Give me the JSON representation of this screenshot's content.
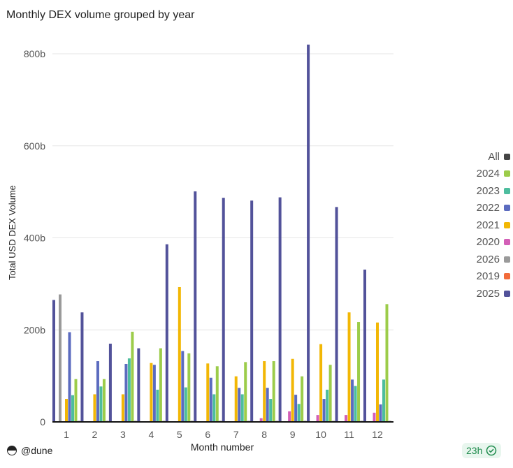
{
  "chart_data": {
    "type": "bar",
    "title": "Monthly DEX volume grouped by year",
    "xlabel": "Month number",
    "ylabel": "Total USD DEX Volume",
    "ylim": [
      0,
      800
    ],
    "yticks": [
      "0",
      "200b",
      "400b",
      "600b",
      "800b"
    ],
    "grid": true,
    "legend_position": "right",
    "categories": [
      "1",
      "2",
      "3",
      "4",
      "5",
      "6",
      "7",
      "8",
      "9",
      "10",
      "11",
      "12"
    ],
    "series": [
      {
        "name": "2025",
        "color": "#52529a",
        "values": [
          265,
          238,
          170,
          160,
          386,
          501,
          487,
          481,
          488,
          820,
          467,
          331
        ]
      },
      {
        "name": "2019",
        "color": "#f26b3a",
        "values": [
          0,
          0,
          0,
          0,
          0,
          0,
          0,
          0,
          0,
          0,
          0,
          0
        ]
      },
      {
        "name": "2026",
        "color": "#9a9a9a",
        "values": [
          277,
          0,
          0,
          0,
          0,
          0,
          0,
          0,
          0,
          0,
          0,
          0
        ]
      },
      {
        "name": "2020",
        "color": "#d35fb7",
        "values": [
          0,
          0,
          0,
          0,
          0,
          0,
          0,
          8,
          23,
          15,
          15,
          20
        ]
      },
      {
        "name": "2021",
        "color": "#f2b705",
        "values": [
          50,
          60,
          60,
          128,
          293,
          127,
          99,
          132,
          137,
          169,
          238,
          216
        ]
      },
      {
        "name": "2022",
        "color": "#5b6bbf",
        "values": [
          195,
          132,
          126,
          124,
          154,
          96,
          74,
          74,
          59,
          50,
          92,
          38
        ]
      },
      {
        "name": "2023",
        "color": "#4dbd9e",
        "values": [
          58,
          77,
          138,
          70,
          75,
          60,
          60,
          50,
          39,
          70,
          78,
          92
        ]
      },
      {
        "name": "2024",
        "color": "#9ccc4a",
        "values": [
          93,
          93,
          196,
          160,
          149,
          121,
          130,
          132,
          99,
          124,
          217,
          256
        ]
      },
      {
        "name": "All",
        "color": "#444444",
        "values": [
          2,
          2,
          2,
          2,
          2,
          2,
          2,
          2,
          2,
          2,
          2,
          2
        ]
      }
    ],
    "legend_order": [
      "All",
      "2024",
      "2023",
      "2022",
      "2021",
      "2020",
      "2026",
      "2019",
      "2025"
    ]
  },
  "footer": {
    "brand": "@dune",
    "refresh": "23h"
  }
}
